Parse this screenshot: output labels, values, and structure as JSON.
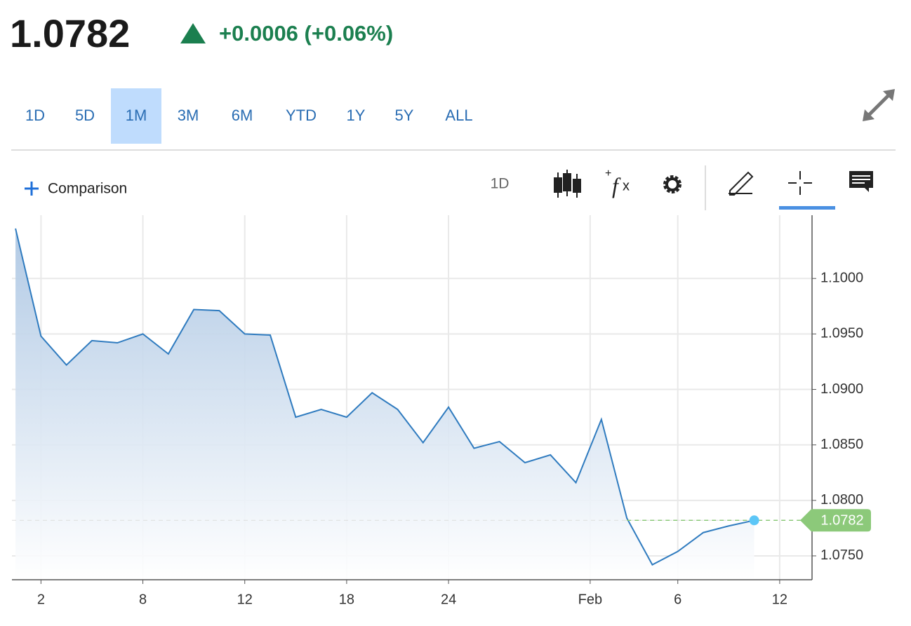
{
  "header": {
    "price": "1.0782",
    "change": "+0.0006 (+0.06%)"
  },
  "tabs": {
    "items": [
      "1D",
      "5D",
      "1M",
      "3M",
      "6M",
      "YTD",
      "1Y",
      "5Y",
      "ALL"
    ],
    "selected_index": 2
  },
  "toolbar": {
    "comparison": "Comparison",
    "interval": "1D"
  },
  "chart_data": {
    "type": "area",
    "x": [
      0,
      1,
      2,
      3,
      4,
      5,
      6,
      7,
      8,
      9,
      10,
      11,
      12,
      13,
      14,
      15,
      16,
      17,
      18,
      19,
      20,
      21,
      22,
      23,
      24,
      25,
      26,
      27,
      28,
      29
    ],
    "values": [
      1.1045,
      1.0948,
      1.0922,
      1.0944,
      1.0942,
      1.095,
      1.0932,
      1.0972,
      1.0971,
      1.095,
      1.0949,
      1.0875,
      1.0882,
      1.0875,
      1.0897,
      1.0882,
      1.0852,
      1.0884,
      1.0847,
      1.0853,
      1.0834,
      1.0841,
      1.0816,
      1.0873,
      1.0784,
      1.0742,
      1.0754,
      1.0771,
      1.0777,
      1.0782
    ],
    "color": "#2f7bbf",
    "xlim": [
      -0.14,
      31.27
    ],
    "xticks": [
      {
        "value": 1,
        "label": "2"
      },
      {
        "value": 5,
        "label": "8"
      },
      {
        "value": 9,
        "label": "12"
      },
      {
        "value": 13,
        "label": "18"
      },
      {
        "value": 17,
        "label": "24"
      },
      {
        "value": 22.56,
        "label": "Feb"
      },
      {
        "value": 26,
        "label": "6"
      },
      {
        "value": 30,
        "label": "12"
      }
    ],
    "ylim": [
      1.07285,
      1.1057
    ],
    "yticks": [
      {
        "value": 1.075,
        "label": "1.0750"
      },
      {
        "value": 1.08,
        "label": "1.0800"
      },
      {
        "value": 1.085,
        "label": "1.0850"
      },
      {
        "value": 1.09,
        "label": "1.0900"
      },
      {
        "value": 1.095,
        "label": "1.0950"
      },
      {
        "value": 1.1,
        "label": "1.1000"
      }
    ],
    "grid": true
  }
}
